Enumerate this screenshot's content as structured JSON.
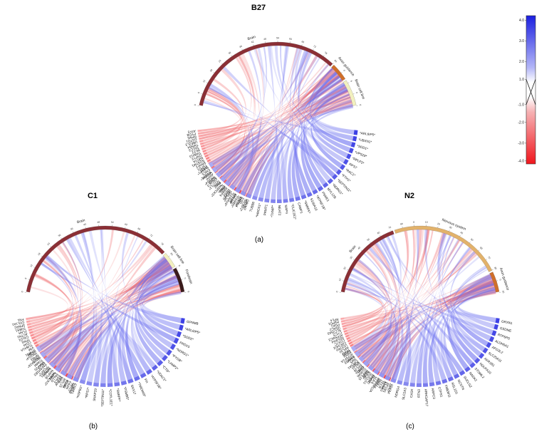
{
  "panels": [
    {
      "id": "b27",
      "title": "B27",
      "caption": "(a)",
      "categories": [
        {
          "label": "Brain",
          "color": "#8b2f35",
          "frac": 0.78
        },
        {
          "label": "Axon guidance",
          "color": "#cf6f2a",
          "frac": 0.09
        },
        {
          "label": "Brain cell line",
          "color": "#f2f0bf",
          "frac": 0.13
        }
      ],
      "cat_ticks": [
        "0",
        "6",
        "12",
        "18",
        "24",
        "30",
        "36",
        "42",
        "48",
        "54",
        "60",
        "66",
        "72",
        "78",
        "84",
        "0",
        "6",
        "0",
        "6"
      ],
      "genes_left": [
        "CALM2",
        "*PCBP2*",
        "ESD",
        "SDCBP",
        "*PSMB5*",
        "ARL6IP",
        "*S100A16*",
        "*RPL22*",
        "HDGF",
        "RBBP4",
        "ENSA",
        "*MARCKS*",
        "PAK2",
        "*COTL1*",
        "ERGIC3",
        "*PA2G4*",
        "ARPP",
        "*PCBP1*",
        "EMC5",
        "*LASP1*",
        "TSPD1",
        "BRAF2",
        "SQSTM1",
        "MAT2A",
        "CNPY2",
        "TIMM13",
        "MLF2",
        "TACC3",
        "TMSB4",
        "UBE2L3",
        "GSTO1",
        "NPM1",
        "PYGB",
        "ATF5"
      ],
      "genes_right": [
        "*ARL6IP5*",
        "*UBXN1*",
        "*SOD1*",
        "*VPS29*",
        "*RPLP2*",
        "RPS7",
        "*RAC1*",
        "*FTH1*",
        "*SEPTIN11*",
        "*NDRG1*",
        "MYL12B",
        "PSME1",
        "*ATP6F1B*",
        "S100A10",
        "*SNRPF*",
        "CAMP1",
        "*CLIC1E1*",
        "MAP4",
        "NEAT2",
        "*TXNIP*",
        "PRMT1",
        "*HMOX1*",
        "TUBB6",
        "*CD9*",
        "PSMA6",
        "ANXA5",
        "GAPDH",
        "PKM",
        "TPI1",
        "ENO1",
        "ALDOA",
        "LDHA"
      ]
    },
    {
      "id": "c1",
      "title": "C1",
      "caption": "(b)",
      "categories": [
        {
          "label": "Brain",
          "color": "#8b2f35",
          "frac": 0.8
        },
        {
          "label": "Brain cell line",
          "color": "#f2f0bf",
          "frac": 0.08
        },
        {
          "label": "Forebrain",
          "color": "#3a1b1b",
          "frac": 0.12
        }
      ],
      "cat_ticks": [
        "0",
        "6",
        "12",
        "18",
        "24",
        "30",
        "36",
        "42",
        "48",
        "54",
        "60",
        "66",
        "72",
        "78",
        "84",
        "0",
        "0",
        "6"
      ],
      "genes_left": [
        "CSRP1",
        "*RPL5*",
        "FASN",
        "RCN3",
        "RPL15",
        "EIF6",
        "EDIL3",
        "PALLD",
        "*MARCKS*",
        "MAP1B",
        "NANS1",
        "*PCBP2*",
        "PAFAH1B3",
        "SNAP25",
        "TOMM",
        "*S100A16*",
        "NPM3",
        "*PA2G4*",
        "STMN1",
        "VIM",
        "TUBA1A",
        "CD44",
        "TPM1",
        "CALD1",
        "ACTN1",
        "FLNA",
        "THBS1",
        "SPARC",
        "COL1A1",
        "FN1"
      ],
      "genes_right": [
        "GPNMB",
        "*ARL6IP5*",
        "*SOD2*",
        "PRDX5",
        "*NDRG1*",
        "*PYGB*",
        "*LAMP2*",
        "*CTB*",
        "*VDAC1*",
        "*ATP5F1B*",
        "FH",
        "*TMEM43*",
        "SNX17",
        "*PSMB5*",
        "*SNRPF*",
        "*COTL1E1*",
        "*SEPTIN11*",
        "SNAP29",
        "*RPS7*",
        "*HSPB1*",
        "PRMT1",
        "NPC2",
        "ANXA2",
        "TIMP1",
        "LGALS1",
        "CTSD",
        "CTSB",
        "HEXB"
      ]
    },
    {
      "id": "n2",
      "title": "N2",
      "caption": "(c)",
      "categories": [
        {
          "label": "Brain",
          "color": "#8b2f35",
          "frac": 0.38
        },
        {
          "label": "Nervous system",
          "color": "#e2b26b",
          "frac": 0.52
        },
        {
          "label": "Axon guidance",
          "color": "#cf6f2a",
          "frac": 0.1
        }
      ],
      "cat_ticks": [
        "0",
        "10",
        "20",
        "30",
        "40",
        "50",
        "60",
        "70",
        "80",
        "0",
        "10",
        "20",
        "30",
        "40",
        "50",
        "60",
        "70",
        "80",
        "0",
        "10"
      ],
      "genes_left": [
        "GPX7",
        "AP1M1",
        "KPNA3",
        "TECR",
        "TMX1",
        "PPP1R12A",
        "SDF4",
        "ENO3",
        "SUCLG1",
        "EIF3G",
        "MRPL15",
        "S100A6",
        "GYS1",
        "RPL36",
        "RPL11",
        "COL5A1",
        "SMS",
        "NANS",
        "ATP5F1A",
        "PIP5K",
        "TFAM",
        "RPL30",
        "UQCRH",
        "CHCHD2",
        "COX7C",
        "NDUFA4",
        "ATP5MC3",
        "CYCS",
        "SLC25A5",
        "VDAC2",
        "PGK1",
        "HSPD1",
        "RPL4"
      ],
      "genes_right": [
        "GRXN1",
        "GSDME",
        "RTP6PD",
        "ALDH6A1",
        "AFG3L2",
        "SLC25A11",
        "AKR1B1",
        "NDUFA10",
        "STOML2",
        "NADK2",
        "SUCLG2",
        "NCSTN",
        "RSL1D1",
        "FMEM11",
        "CTPS1",
        "ARPC3",
        "ARHGAP17",
        "RTN3",
        "CASK",
        "SLC2A3",
        "NDRG4",
        "PEA15",
        "SYT1",
        "STMN2",
        "GAP43",
        "NEFL",
        "TUBB3",
        "DCX",
        "ELAVL4",
        "MAP2"
      ]
    }
  ],
  "legend": {
    "ticks": [
      "4.0",
      "3.0",
      "2.0",
      "1.0",
      "-1.0",
      "-2.0",
      "-3.0",
      "-4.0"
    ],
    "high_color": "#1b1fe0",
    "low_color": "#f0161d",
    "mid_color": "#ffffff"
  }
}
